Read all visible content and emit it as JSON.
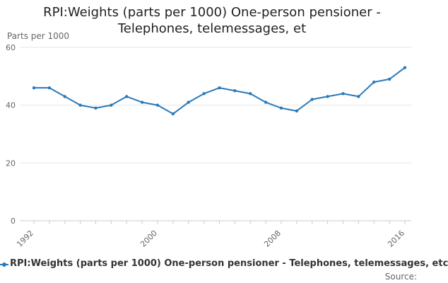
{
  "chart_data": {
    "type": "line",
    "title_lines": [
      "RPI:Weights (parts per 1000) One-person pensioner -",
      "Telephones, telemessages, et"
    ],
    "ylabel": "Parts per 1000",
    "xlabel": "",
    "ylim": [
      0,
      60
    ],
    "yticks": [
      0,
      20,
      40,
      60
    ],
    "xlim": [
      1992,
      2016
    ],
    "xticks": [
      1992,
      2000,
      2008,
      2016
    ],
    "grid": true,
    "legend_position": "bottom",
    "series": [
      {
        "name": "RPI:Weights (parts per 1000) One-person pensioner - Telephones, telemessages, etc",
        "color": "#2a7ab9",
        "x": [
          1992,
          1993,
          1994,
          1995,
          1996,
          1997,
          1998,
          1999,
          2000,
          2001,
          2002,
          2003,
          2004,
          2005,
          2006,
          2007,
          2008,
          2009,
          2010,
          2011,
          2012,
          2013,
          2014,
          2015,
          2016
        ],
        "values": [
          46,
          46,
          43,
          40,
          39,
          40,
          43,
          41,
          40,
          37,
          41,
          44,
          46,
          45,
          44,
          41,
          39,
          38,
          42,
          43,
          44,
          43,
          48,
          49,
          53
        ]
      }
    ]
  },
  "footer": {
    "source": "Source:"
  }
}
